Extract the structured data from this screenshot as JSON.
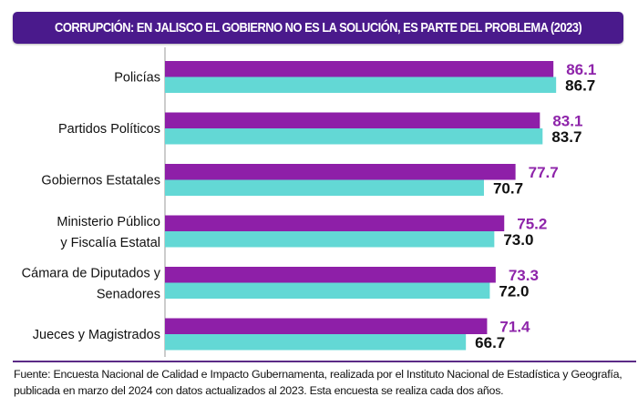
{
  "title": "CORRUPCIÓN: EN JALISCO EL GOBIERNO NO ES LA SOLUCIÓN, ES PARTE DEL PROBLEMA (2023)",
  "source_line1": "Fuente: Encuesta Nacional de Calidad e Impacto Gubernamenta, realizada por el Instituto Nacional de Estadística y Geografía,",
  "source_line2": "publicada en marzo del 2024 con datos actualizados al 2023. Esta encuesta se realiza cada dos años.",
  "colors": {
    "series_a": "#8e1fa8",
    "series_b": "#63d8d5",
    "title_bg": "#4a1a8c",
    "label_a": "#8e24aa",
    "label_b": "#111111"
  },
  "chart_data": {
    "type": "bar",
    "orientation": "horizontal",
    "title": "CORRUPCIÓN: EN JALISCO EL GOBIERNO NO ES LA SOLUCIÓN, ES PARTE DEL PROBLEMA (2023)",
    "xlabel": "",
    "ylabel": "",
    "xlim": [
      0,
      100
    ],
    "grid": false,
    "legend": "none",
    "categories": [
      [
        "Policías"
      ],
      [
        "Partidos Políticos"
      ],
      [
        "Gobiernos Estatales"
      ],
      [
        "Ministerio Público",
        "y Fiscalía Estatal"
      ],
      [
        "Cámara de Diputados y",
        "Senadores"
      ],
      [
        "Jueces y Magistrados"
      ]
    ],
    "series": [
      {
        "name": "Serie 1 (morado)",
        "values": [
          86.1,
          83.1,
          77.7,
          75.2,
          73.3,
          71.4
        ],
        "labels": [
          "86.1",
          "83.1",
          "77.7",
          "75.2",
          "73.3",
          "71.4"
        ]
      },
      {
        "name": "Serie 2 (turquesa)",
        "values": [
          86.7,
          83.7,
          70.7,
          73.0,
          72.0,
          66.7
        ],
        "labels": [
          "86.7",
          "83.7",
          "70.7",
          "73.0",
          "72.0",
          "66.7"
        ]
      }
    ]
  }
}
